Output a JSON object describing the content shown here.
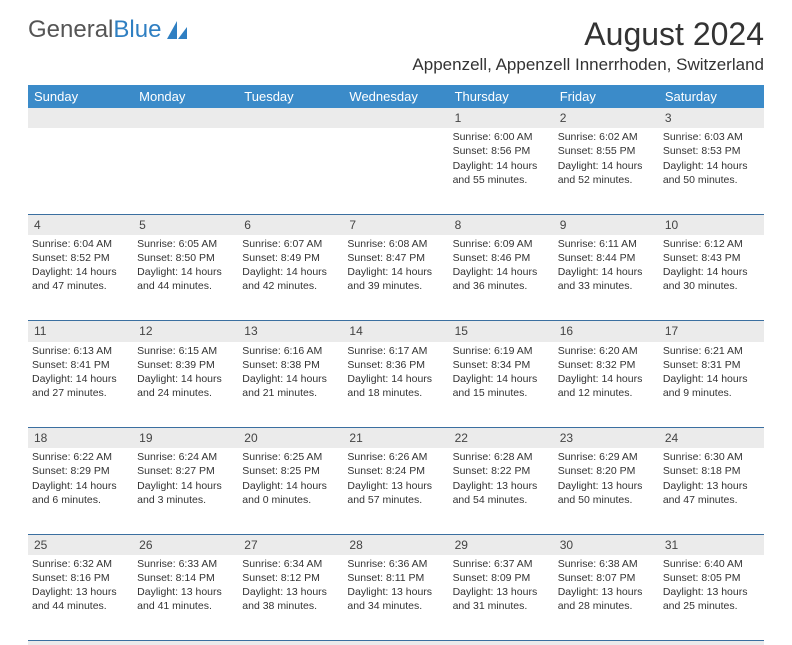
{
  "brand": {
    "part1": "General",
    "part2": "Blue"
  },
  "title": "August 2024",
  "location": "Appenzell, Appenzell Innerrhoden, Switzerland",
  "colors": {
    "header_bg": "#3b8bc9",
    "header_text": "#ffffff",
    "daynum_bg": "#ebebeb",
    "row_divider": "#3b6fa0",
    "brand_blue": "#2f7fc2"
  },
  "weekdays": [
    "Sunday",
    "Monday",
    "Tuesday",
    "Wednesday",
    "Thursday",
    "Friday",
    "Saturday"
  ],
  "weeks": [
    [
      null,
      null,
      null,
      null,
      {
        "n": "1",
        "sunrise": "6:00 AM",
        "sunset": "8:56 PM",
        "day_h": "14",
        "day_m": "55"
      },
      {
        "n": "2",
        "sunrise": "6:02 AM",
        "sunset": "8:55 PM",
        "day_h": "14",
        "day_m": "52"
      },
      {
        "n": "3",
        "sunrise": "6:03 AM",
        "sunset": "8:53 PM",
        "day_h": "14",
        "day_m": "50"
      }
    ],
    [
      {
        "n": "4",
        "sunrise": "6:04 AM",
        "sunset": "8:52 PM",
        "day_h": "14",
        "day_m": "47"
      },
      {
        "n": "5",
        "sunrise": "6:05 AM",
        "sunset": "8:50 PM",
        "day_h": "14",
        "day_m": "44"
      },
      {
        "n": "6",
        "sunrise": "6:07 AM",
        "sunset": "8:49 PM",
        "day_h": "14",
        "day_m": "42"
      },
      {
        "n": "7",
        "sunrise": "6:08 AM",
        "sunset": "8:47 PM",
        "day_h": "14",
        "day_m": "39"
      },
      {
        "n": "8",
        "sunrise": "6:09 AM",
        "sunset": "8:46 PM",
        "day_h": "14",
        "day_m": "36"
      },
      {
        "n": "9",
        "sunrise": "6:11 AM",
        "sunset": "8:44 PM",
        "day_h": "14",
        "day_m": "33"
      },
      {
        "n": "10",
        "sunrise": "6:12 AM",
        "sunset": "8:43 PM",
        "day_h": "14",
        "day_m": "30"
      }
    ],
    [
      {
        "n": "11",
        "sunrise": "6:13 AM",
        "sunset": "8:41 PM",
        "day_h": "14",
        "day_m": "27"
      },
      {
        "n": "12",
        "sunrise": "6:15 AM",
        "sunset": "8:39 PM",
        "day_h": "14",
        "day_m": "24"
      },
      {
        "n": "13",
        "sunrise": "6:16 AM",
        "sunset": "8:38 PM",
        "day_h": "14",
        "day_m": "21"
      },
      {
        "n": "14",
        "sunrise": "6:17 AM",
        "sunset": "8:36 PM",
        "day_h": "14",
        "day_m": "18"
      },
      {
        "n": "15",
        "sunrise": "6:19 AM",
        "sunset": "8:34 PM",
        "day_h": "14",
        "day_m": "15"
      },
      {
        "n": "16",
        "sunrise": "6:20 AM",
        "sunset": "8:32 PM",
        "day_h": "14",
        "day_m": "12"
      },
      {
        "n": "17",
        "sunrise": "6:21 AM",
        "sunset": "8:31 PM",
        "day_h": "14",
        "day_m": "9"
      }
    ],
    [
      {
        "n": "18",
        "sunrise": "6:22 AM",
        "sunset": "8:29 PM",
        "day_h": "14",
        "day_m": "6"
      },
      {
        "n": "19",
        "sunrise": "6:24 AM",
        "sunset": "8:27 PM",
        "day_h": "14",
        "day_m": "3"
      },
      {
        "n": "20",
        "sunrise": "6:25 AM",
        "sunset": "8:25 PM",
        "day_h": "14",
        "day_m": "0"
      },
      {
        "n": "21",
        "sunrise": "6:26 AM",
        "sunset": "8:24 PM",
        "day_h": "13",
        "day_m": "57"
      },
      {
        "n": "22",
        "sunrise": "6:28 AM",
        "sunset": "8:22 PM",
        "day_h": "13",
        "day_m": "54"
      },
      {
        "n": "23",
        "sunrise": "6:29 AM",
        "sunset": "8:20 PM",
        "day_h": "13",
        "day_m": "50"
      },
      {
        "n": "24",
        "sunrise": "6:30 AM",
        "sunset": "8:18 PM",
        "day_h": "13",
        "day_m": "47"
      }
    ],
    [
      {
        "n": "25",
        "sunrise": "6:32 AM",
        "sunset": "8:16 PM",
        "day_h": "13",
        "day_m": "44"
      },
      {
        "n": "26",
        "sunrise": "6:33 AM",
        "sunset": "8:14 PM",
        "day_h": "13",
        "day_m": "41"
      },
      {
        "n": "27",
        "sunrise": "6:34 AM",
        "sunset": "8:12 PM",
        "day_h": "13",
        "day_m": "38"
      },
      {
        "n": "28",
        "sunrise": "6:36 AM",
        "sunset": "8:11 PM",
        "day_h": "13",
        "day_m": "34"
      },
      {
        "n": "29",
        "sunrise": "6:37 AM",
        "sunset": "8:09 PM",
        "day_h": "13",
        "day_m": "31"
      },
      {
        "n": "30",
        "sunrise": "6:38 AM",
        "sunset": "8:07 PM",
        "day_h": "13",
        "day_m": "28"
      },
      {
        "n": "31",
        "sunrise": "6:40 AM",
        "sunset": "8:05 PM",
        "day_h": "13",
        "day_m": "25"
      }
    ]
  ],
  "labels": {
    "sunrise": "Sunrise:",
    "sunset": "Sunset:",
    "daylight": "Daylight:",
    "hours_word": "hours",
    "and_word": "and",
    "minutes_word": "minutes."
  }
}
